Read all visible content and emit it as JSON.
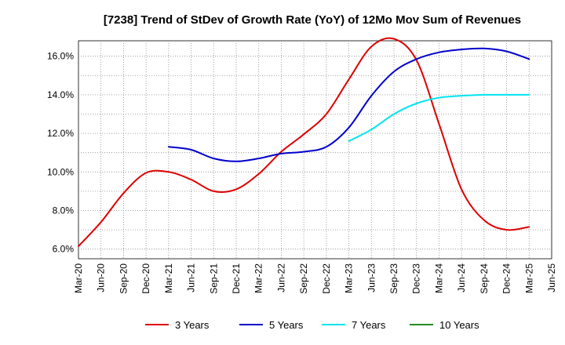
{
  "chart_data": {
    "type": "line",
    "title": "[7238]  Trend of StDev of Growth Rate (YoY) of 12Mo Mov Sum of Revenues",
    "xlabel": "",
    "ylabel": "",
    "x_ticks": [
      "Mar-20",
      "Jun-20",
      "Sep-20",
      "Dec-20",
      "Mar-21",
      "Jun-21",
      "Sep-21",
      "Dec-21",
      "Mar-22",
      "Jun-22",
      "Sep-22",
      "Dec-22",
      "Mar-23",
      "Jun-23",
      "Sep-23",
      "Dec-23",
      "Mar-24",
      "Jun-24",
      "Sep-24",
      "Dec-24",
      "Mar-25",
      "Jun-25"
    ],
    "y_ticks": [
      "6.0%",
      "8.0%",
      "10.0%",
      "12.0%",
      "14.0%",
      "16.0%"
    ],
    "y_tick_values": [
      6,
      8,
      10,
      12,
      14,
      16
    ],
    "ylim": [
      5.5,
      16.8
    ],
    "grid": true,
    "legend_position": "bottom",
    "series": [
      {
        "name": "3 Years",
        "color": "#dd0000",
        "points": [
          [
            0,
            6.15
          ],
          [
            1,
            7.4
          ],
          [
            2,
            8.9
          ],
          [
            3,
            9.95
          ],
          [
            4,
            10.0
          ],
          [
            5,
            9.6
          ],
          [
            6,
            9.0
          ],
          [
            7,
            9.1
          ],
          [
            8,
            9.9
          ],
          [
            9,
            11.05
          ],
          [
            10,
            11.95
          ],
          [
            11,
            13.0
          ],
          [
            12,
            14.8
          ],
          [
            13,
            16.5
          ],
          [
            14,
            16.9
          ],
          [
            15,
            15.8
          ],
          [
            16,
            12.5
          ],
          [
            17,
            9.1
          ],
          [
            18,
            7.5
          ],
          [
            19,
            7.0
          ],
          [
            20,
            7.15
          ]
        ]
      },
      {
        "name": "5 Years",
        "color": "#0000cc",
        "points": [
          [
            4,
            11.3
          ],
          [
            5,
            11.15
          ],
          [
            6,
            10.7
          ],
          [
            7,
            10.55
          ],
          [
            8,
            10.7
          ],
          [
            9,
            10.95
          ],
          [
            10,
            11.05
          ],
          [
            11,
            11.3
          ],
          [
            12,
            12.3
          ],
          [
            13,
            13.95
          ],
          [
            14,
            15.2
          ],
          [
            15,
            15.85
          ],
          [
            16,
            16.2
          ],
          [
            17,
            16.35
          ],
          [
            18,
            16.4
          ],
          [
            19,
            16.25
          ],
          [
            20,
            15.85
          ]
        ]
      },
      {
        "name": "7 Years",
        "color": "#00e5ee",
        "points": [
          [
            12,
            11.6
          ],
          [
            13,
            12.2
          ],
          [
            14,
            13.0
          ],
          [
            15,
            13.55
          ],
          [
            16,
            13.85
          ],
          [
            17,
            13.95
          ],
          [
            18,
            14.0
          ],
          [
            19,
            14.0
          ],
          [
            20,
            14.0
          ]
        ]
      },
      {
        "name": "10 Years",
        "color": "#228b22",
        "points": []
      }
    ]
  }
}
